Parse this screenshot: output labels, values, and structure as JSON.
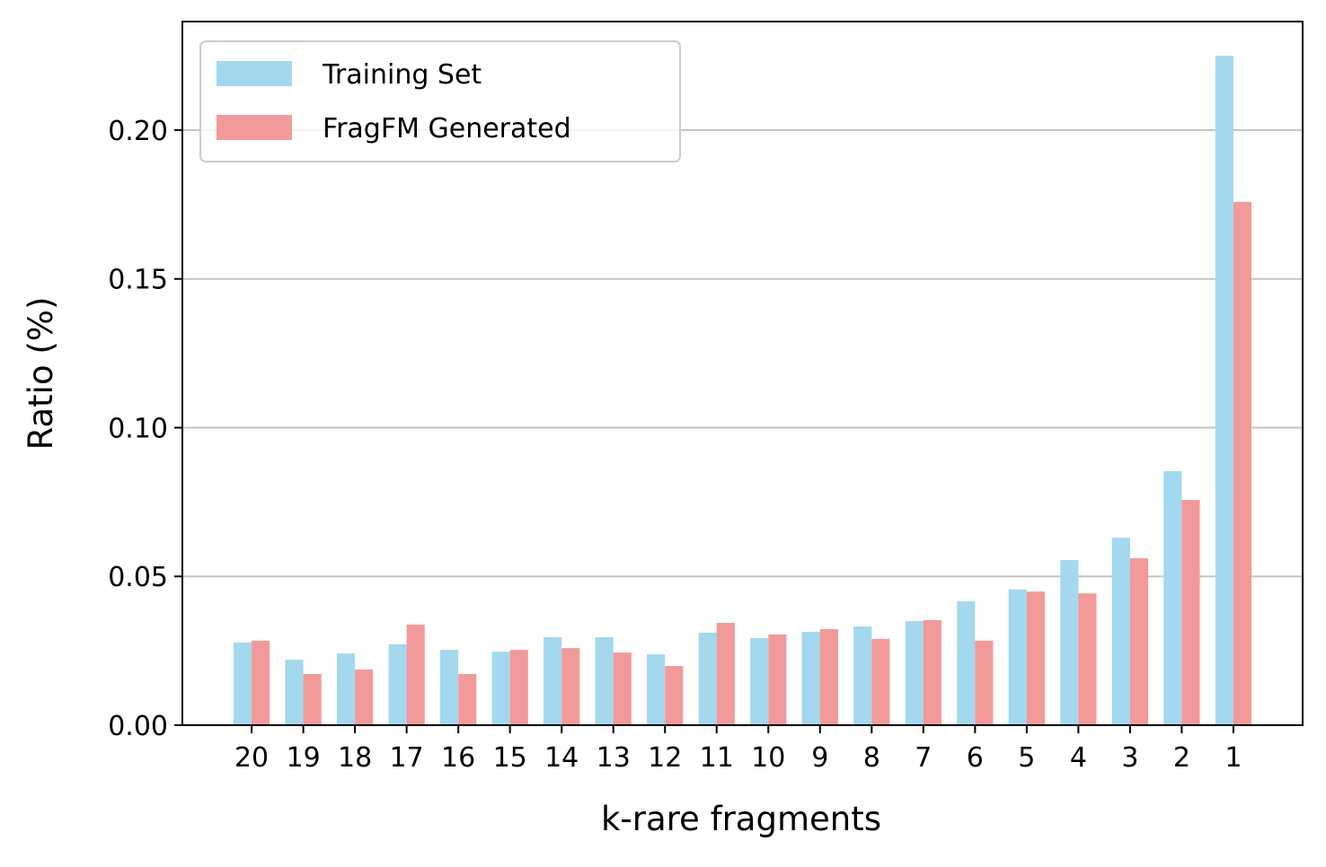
{
  "chart_data": {
    "type": "bar",
    "x_label": "k-rare fragments",
    "y_label": "Ratio (%)",
    "categories": [
      "20",
      "19",
      "18",
      "17",
      "16",
      "15",
      "14",
      "13",
      "12",
      "11",
      "10",
      "9",
      "8",
      "7",
      "6",
      "5",
      "4",
      "3",
      "2",
      "1"
    ],
    "series": [
      {
        "name": "Training Set",
        "color": "#a3d8ef",
        "values": [
          0.0278,
          0.022,
          0.0241,
          0.0272,
          0.0253,
          0.0247,
          0.0296,
          0.0296,
          0.0238,
          0.0311,
          0.0293,
          0.0314,
          0.0332,
          0.035,
          0.0416,
          0.0456,
          0.0555,
          0.063,
          0.0854,
          0.225
        ]
      },
      {
        "name": "FragFM Generated",
        "color": "#f29a9a",
        "values": [
          0.0284,
          0.0172,
          0.0187,
          0.0338,
          0.0172,
          0.0253,
          0.0259,
          0.0244,
          0.0199,
          0.0344,
          0.0305,
          0.0323,
          0.029,
          0.0353,
          0.0284,
          0.0449,
          0.0443,
          0.0561,
          0.0757,
          0.1759
        ]
      }
    ],
    "ylim": [
      0,
      0.2365
    ],
    "yticks": [
      {
        "value": 0,
        "label": "0.00"
      },
      0.05,
      {
        "value": 0.1,
        "label": "0.10"
      },
      0.15,
      {
        "value": 0.2,
        "label": "0.20"
      }
    ],
    "grid": true,
    "legend": "upper left"
  }
}
